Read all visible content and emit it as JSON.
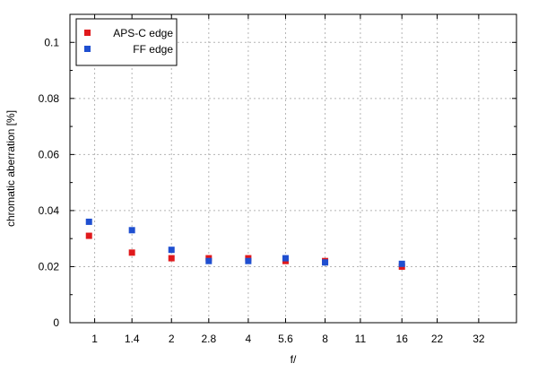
{
  "chart_data": {
    "type": "scatter",
    "title": "",
    "xlabel": "f/",
    "ylabel": "chromatic aberration [%]",
    "x_categories": [
      "1",
      "1.4",
      "2",
      "2.8",
      "4",
      "5.6",
      "8",
      "11",
      "16",
      "22",
      "32"
    ],
    "y_ticks": [
      "0",
      "0.02",
      "0.04",
      "0.06",
      "0.08",
      "0.1"
    ],
    "ylim": [
      0,
      0.11
    ],
    "grid": true,
    "legend_position": "top-left",
    "series": [
      {
        "name": "APS-C edge",
        "color": "#e0191c",
        "points": [
          {
            "x": 0.95,
            "y": 0.031
          },
          {
            "x": 1.4,
            "y": 0.025
          },
          {
            "x": 2.0,
            "y": 0.023
          },
          {
            "x": 2.8,
            "y": 0.023
          },
          {
            "x": 4.0,
            "y": 0.023
          },
          {
            "x": 5.6,
            "y": 0.022
          },
          {
            "x": 8.0,
            "y": 0.022
          },
          {
            "x": 16.0,
            "y": 0.02
          }
        ]
      },
      {
        "name": "FF edge",
        "color": "#1f4fd0",
        "points": [
          {
            "x": 0.95,
            "y": 0.036
          },
          {
            "x": 1.4,
            "y": 0.033
          },
          {
            "x": 2.0,
            "y": 0.026
          },
          {
            "x": 2.8,
            "y": 0.022
          },
          {
            "x": 4.0,
            "y": 0.022
          },
          {
            "x": 5.6,
            "y": 0.023
          },
          {
            "x": 8.0,
            "y": 0.0215
          },
          {
            "x": 16.0,
            "y": 0.021
          }
        ]
      }
    ]
  }
}
